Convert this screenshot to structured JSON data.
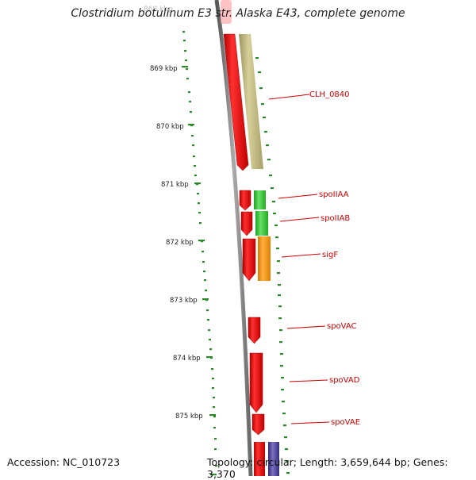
{
  "title": "Clostridium botulinum E3 str. Alaska E43, complete genome",
  "ghost_label": "868 kbp",
  "footer": {
    "accession": "Accession: NC_010723",
    "stats": "Topology: circular; Length: 3,659,644 bp; Genes: 3,370"
  },
  "kbp_labels": [
    "869 kbp",
    "870 kbp",
    "871 kbp",
    "872 kbp",
    "873 kbp",
    "874 kbp",
    "875 kbp"
  ],
  "genes": [
    {
      "name": "CLH_0840",
      "color": "#ff2020",
      "paired_color": "#c8c08a"
    },
    {
      "name": "spoIIAA",
      "color": "#ff2020",
      "paired_color": "#3ccc3c"
    },
    {
      "name": "spoIIAB",
      "color": "#ff2020",
      "paired_color": "#3ccc3c"
    },
    {
      "name": "sigF",
      "color": "#ff2020",
      "paired_color": "#ff9900"
    },
    {
      "name": "spoVAC",
      "color": "#ff2020"
    },
    {
      "name": "spoVAD",
      "color": "#ff2020"
    },
    {
      "name": "spoVAE",
      "color": "#ff2020",
      "paired_color": "#4a3f8a"
    }
  ],
  "colors": {
    "backbone": "#777777",
    "tick": "#2a8a2a",
    "label": "#cc0000"
  }
}
